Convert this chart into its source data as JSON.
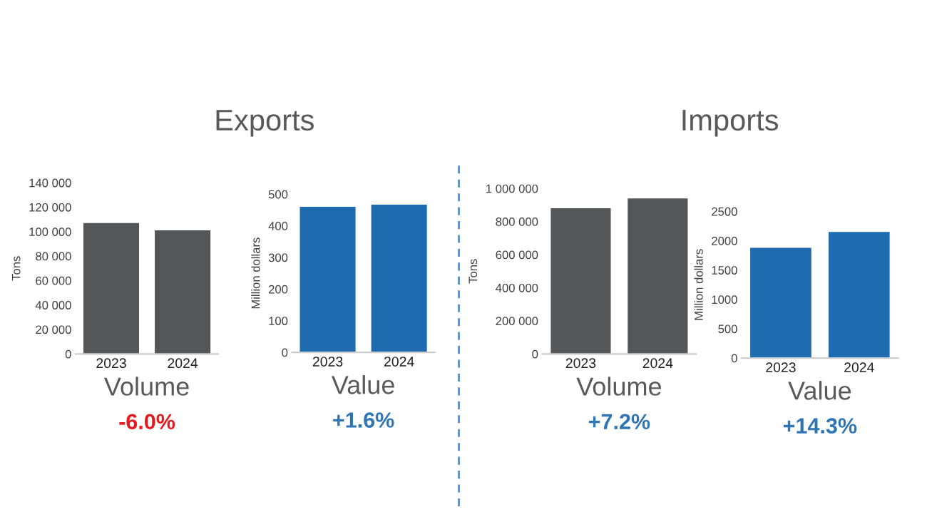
{
  "chart_data": [
    {
      "type": "bar",
      "title": "Exports",
      "xlabel": "Volume",
      "ylabel": "Tons",
      "categories": [
        "2023",
        "2024"
      ],
      "values": [
        107000,
        101000
      ],
      "color": "#54565a",
      "ylim": [
        0,
        140000
      ],
      "yticks": [
        {
          "value": 0,
          "label": "0"
        },
        {
          "value": 20000,
          "label": "20 000"
        },
        {
          "value": 40000,
          "label": "40 000"
        },
        {
          "value": 60000,
          "label": "60 000"
        },
        {
          "value": 80000,
          "label": "80 000"
        },
        {
          "value": 100000,
          "label": "100 000"
        },
        {
          "value": 120000,
          "label": "120 000"
        },
        {
          "value": 140000,
          "label": "140 000"
        }
      ],
      "annotations": [
        "-6.0%"
      ]
    },
    {
      "type": "bar",
      "xlabel": "Value",
      "ylabel": "Million dollars",
      "categories": [
        "2023",
        "2024"
      ],
      "values": [
        460,
        467
      ],
      "color": "#1f6bb0",
      "ylim": [
        0,
        500
      ],
      "yticks": [
        0,
        100,
        200,
        300,
        400,
        500
      ],
      "annotations": [
        "+1.6%"
      ]
    },
    {
      "type": "bar",
      "title": "Imports",
      "xlabel": "Volume",
      "ylabel": "Tons",
      "categories": [
        "2023",
        "2024"
      ],
      "values": [
        880000,
        940000
      ],
      "color": "#54565a",
      "ylim": [
        0,
        1000000
      ],
      "yticks": [
        {
          "value": 0,
          "label": "0"
        },
        {
          "value": 200000,
          "label": "200 000"
        },
        {
          "value": 400000,
          "label": "400 000"
        },
        {
          "value": 600000,
          "label": "600 000"
        },
        {
          "value": 800000,
          "label": "800 000"
        },
        {
          "value": 1000000,
          "label": "1 000 000"
        }
      ],
      "annotations": [
        "+7.2%"
      ]
    },
    {
      "type": "bar",
      "xlabel": "Value",
      "ylabel": "Million dollars",
      "categories": [
        "2023",
        "2024"
      ],
      "values": [
        1880,
        2150
      ],
      "color": "#1f6bb0",
      "ylim": [
        0,
        2500
      ],
      "yticks": [
        0,
        500,
        1000,
        1500,
        2000,
        2500
      ],
      "annotations": [
        "+14.3%"
      ]
    }
  ]
}
